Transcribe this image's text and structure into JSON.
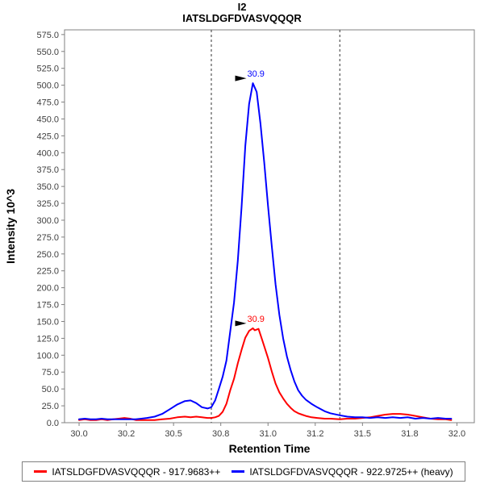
{
  "title": "I2",
  "subtitle": "IATSLDGFDVASVQQQR",
  "colors": {
    "light": "#ff0000",
    "heavy": "#0000ff",
    "axis": "#808080",
    "tick_text": "#404040",
    "boundary": "#333333"
  },
  "legend": {
    "items": [
      {
        "id": "light",
        "label": "IATSLDGFDVASVQQQR - 917.9683++",
        "color": "#ff0000"
      },
      {
        "id": "heavy",
        "label": "IATSLDGFDVASVQQQR - 922.9725++ (heavy)",
        "color": "#0000ff"
      }
    ]
  },
  "chart_data": {
    "type": "line",
    "title": "I2",
    "subtitle": "IATSLDGFDVASVQQQR",
    "xlabel": "Retention Time",
    "ylabel": "Intensity 10^3",
    "xlim": [
      29.923,
      32.092
    ],
    "ylim": [
      0,
      582
    ],
    "grid": false,
    "legend_position": "bottom",
    "x_ticks": [
      {
        "v": 30.0,
        "label": "30.0"
      },
      {
        "v": 30.25,
        "label": "30.2"
      },
      {
        "v": 30.5,
        "label": "30.5"
      },
      {
        "v": 30.75,
        "label": "30.8"
      },
      {
        "v": 31.0,
        "label": "31.0"
      },
      {
        "v": 31.25,
        "label": "31.2"
      },
      {
        "v": 31.5,
        "label": "31.5"
      },
      {
        "v": 31.75,
        "label": "31.8"
      },
      {
        "v": 32.0,
        "label": "32.0"
      }
    ],
    "y_ticks": {
      "min": 0,
      "max": 575,
      "step": 25,
      "decimals": 1
    },
    "peak_boundaries": [
      30.7,
      31.38
    ],
    "series": [
      {
        "id": "light",
        "name": "IATSLDGFDVASVQQQR - 917.9683++",
        "color": "#ff0000",
        "annotation": {
          "label": "30.9",
          "x": 30.92,
          "y": 140
        },
        "points": [
          [
            30.0,
            4
          ],
          [
            30.03,
            5
          ],
          [
            30.06,
            4
          ],
          [
            30.09,
            4
          ],
          [
            30.12,
            5
          ],
          [
            30.15,
            4
          ],
          [
            30.18,
            5
          ],
          [
            30.21,
            6
          ],
          [
            30.24,
            7
          ],
          [
            30.27,
            6
          ],
          [
            30.3,
            4
          ],
          [
            30.33,
            4
          ],
          [
            30.36,
            4
          ],
          [
            30.4,
            4
          ],
          [
            30.44,
            5
          ],
          [
            30.48,
            6
          ],
          [
            30.52,
            8
          ],
          [
            30.56,
            9
          ],
          [
            30.59,
            8
          ],
          [
            30.62,
            9
          ],
          [
            30.65,
            8
          ],
          [
            30.68,
            7
          ],
          [
            30.7,
            7
          ],
          [
            30.72,
            8
          ],
          [
            30.74,
            10
          ],
          [
            30.76,
            16
          ],
          [
            30.78,
            28
          ],
          [
            30.8,
            48
          ],
          [
            30.82,
            65
          ],
          [
            30.84,
            88
          ],
          [
            30.86,
            108
          ],
          [
            30.88,
            126
          ],
          [
            30.9,
            136
          ],
          [
            30.92,
            140
          ],
          [
            30.93,
            137
          ],
          [
            30.95,
            139
          ],
          [
            30.97,
            122
          ],
          [
            31.0,
            96
          ],
          [
            31.02,
            76
          ],
          [
            31.04,
            58
          ],
          [
            31.06,
            45
          ],
          [
            31.08,
            36
          ],
          [
            31.1,
            28
          ],
          [
            31.12,
            22
          ],
          [
            31.14,
            17
          ],
          [
            31.16,
            14
          ],
          [
            31.18,
            12
          ],
          [
            31.2,
            10
          ],
          [
            31.23,
            8
          ],
          [
            31.26,
            7
          ],
          [
            31.3,
            6
          ],
          [
            31.33,
            6
          ],
          [
            31.38,
            5
          ],
          [
            31.42,
            6
          ],
          [
            31.46,
            6
          ],
          [
            31.5,
            7
          ],
          [
            31.54,
            8
          ],
          [
            31.58,
            10
          ],
          [
            31.62,
            12
          ],
          [
            31.66,
            13
          ],
          [
            31.7,
            13
          ],
          [
            31.74,
            12
          ],
          [
            31.78,
            10
          ],
          [
            31.82,
            8
          ],
          [
            31.86,
            6
          ],
          [
            31.9,
            5
          ],
          [
            31.94,
            5
          ],
          [
            31.97,
            4
          ]
        ]
      },
      {
        "id": "heavy",
        "name": "IATSLDGFDVASVQQQR - 922.9725++ (heavy)",
        "color": "#0000ff",
        "annotation": {
          "label": "30.9",
          "x": 30.92,
          "y": 503
        },
        "points": [
          [
            30.0,
            5
          ],
          [
            30.03,
            6
          ],
          [
            30.06,
            5
          ],
          [
            30.09,
            5
          ],
          [
            30.12,
            6
          ],
          [
            30.15,
            5
          ],
          [
            30.18,
            5
          ],
          [
            30.21,
            5
          ],
          [
            30.24,
            5
          ],
          [
            30.27,
            5
          ],
          [
            30.3,
            5
          ],
          [
            30.33,
            6
          ],
          [
            30.36,
            7
          ],
          [
            30.4,
            9
          ],
          [
            30.44,
            13
          ],
          [
            30.48,
            20
          ],
          [
            30.52,
            27
          ],
          [
            30.56,
            32
          ],
          [
            30.59,
            33
          ],
          [
            30.62,
            29
          ],
          [
            30.65,
            23
          ],
          [
            30.68,
            21
          ],
          [
            30.7,
            23
          ],
          [
            30.72,
            33
          ],
          [
            30.74,
            50
          ],
          [
            30.76,
            68
          ],
          [
            30.78,
            92
          ],
          [
            30.8,
            135
          ],
          [
            30.82,
            178
          ],
          [
            30.84,
            240
          ],
          [
            30.86,
            320
          ],
          [
            30.88,
            410
          ],
          [
            30.9,
            472
          ],
          [
            30.92,
            503
          ],
          [
            30.94,
            490
          ],
          [
            30.96,
            443
          ],
          [
            30.98,
            385
          ],
          [
            31.0,
            322
          ],
          [
            31.02,
            262
          ],
          [
            31.04,
            205
          ],
          [
            31.06,
            160
          ],
          [
            31.08,
            125
          ],
          [
            31.1,
            98
          ],
          [
            31.12,
            78
          ],
          [
            31.14,
            61
          ],
          [
            31.16,
            48
          ],
          [
            31.18,
            40
          ],
          [
            31.2,
            34
          ],
          [
            31.23,
            28
          ],
          [
            31.26,
            23
          ],
          [
            31.3,
            17
          ],
          [
            31.33,
            14
          ],
          [
            31.38,
            11
          ],
          [
            31.42,
            9
          ],
          [
            31.46,
            8
          ],
          [
            31.5,
            8
          ],
          [
            31.54,
            7
          ],
          [
            31.58,
            8
          ],
          [
            31.62,
            7
          ],
          [
            31.66,
            8
          ],
          [
            31.7,
            7
          ],
          [
            31.74,
            8
          ],
          [
            31.78,
            6
          ],
          [
            31.82,
            7
          ],
          [
            31.86,
            6
          ],
          [
            31.9,
            7
          ],
          [
            31.94,
            6
          ],
          [
            31.97,
            6
          ]
        ]
      }
    ]
  }
}
